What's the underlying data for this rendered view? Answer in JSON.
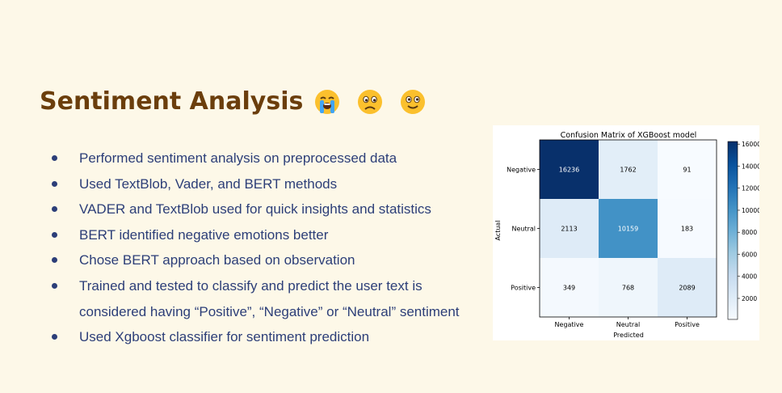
{
  "slide": {
    "title": "Sentiment Analysis",
    "emojis": [
      "crying-face-icon",
      "frowning-face-icon",
      "smiling-face-icon"
    ],
    "bullets": [
      "Performed sentiment analysis on preprocessed data",
      "Used TextBlob, Vader, and BERT methods",
      "VADER and TextBlob used for quick insights and statistics",
      "BERT identified negative emotions better",
      "Chose BERT approach based on observation",
      "Trained and tested to classify and predict the user text is considered having “Positive”, “Negative” or “Neutral” sentiment",
      "Used Xgboost classifier for sentiment prediction"
    ],
    "colors": {
      "background": "#fdf8e8",
      "title": "#6b3e0c",
      "text": "#2c3e78"
    }
  },
  "chart_data": {
    "type": "heatmap",
    "title": "Confusion Matrix of XGBoost model",
    "xlabel": "Predicted",
    "ylabel": "Actual",
    "x_categories": [
      "Negative",
      "Neutral",
      "Positive"
    ],
    "y_categories": [
      "Negative",
      "Neutral",
      "Positive"
    ],
    "values": [
      [
        16236,
        1762,
        91
      ],
      [
        2113,
        10159,
        183
      ],
      [
        349,
        768,
        2089
      ]
    ],
    "colormap": "Blues",
    "colorbar_ticks": [
      2000,
      4000,
      6000,
      8000,
      10000,
      12000,
      14000,
      16000
    ],
    "colorbar_range": [
      91,
      16236
    ]
  }
}
